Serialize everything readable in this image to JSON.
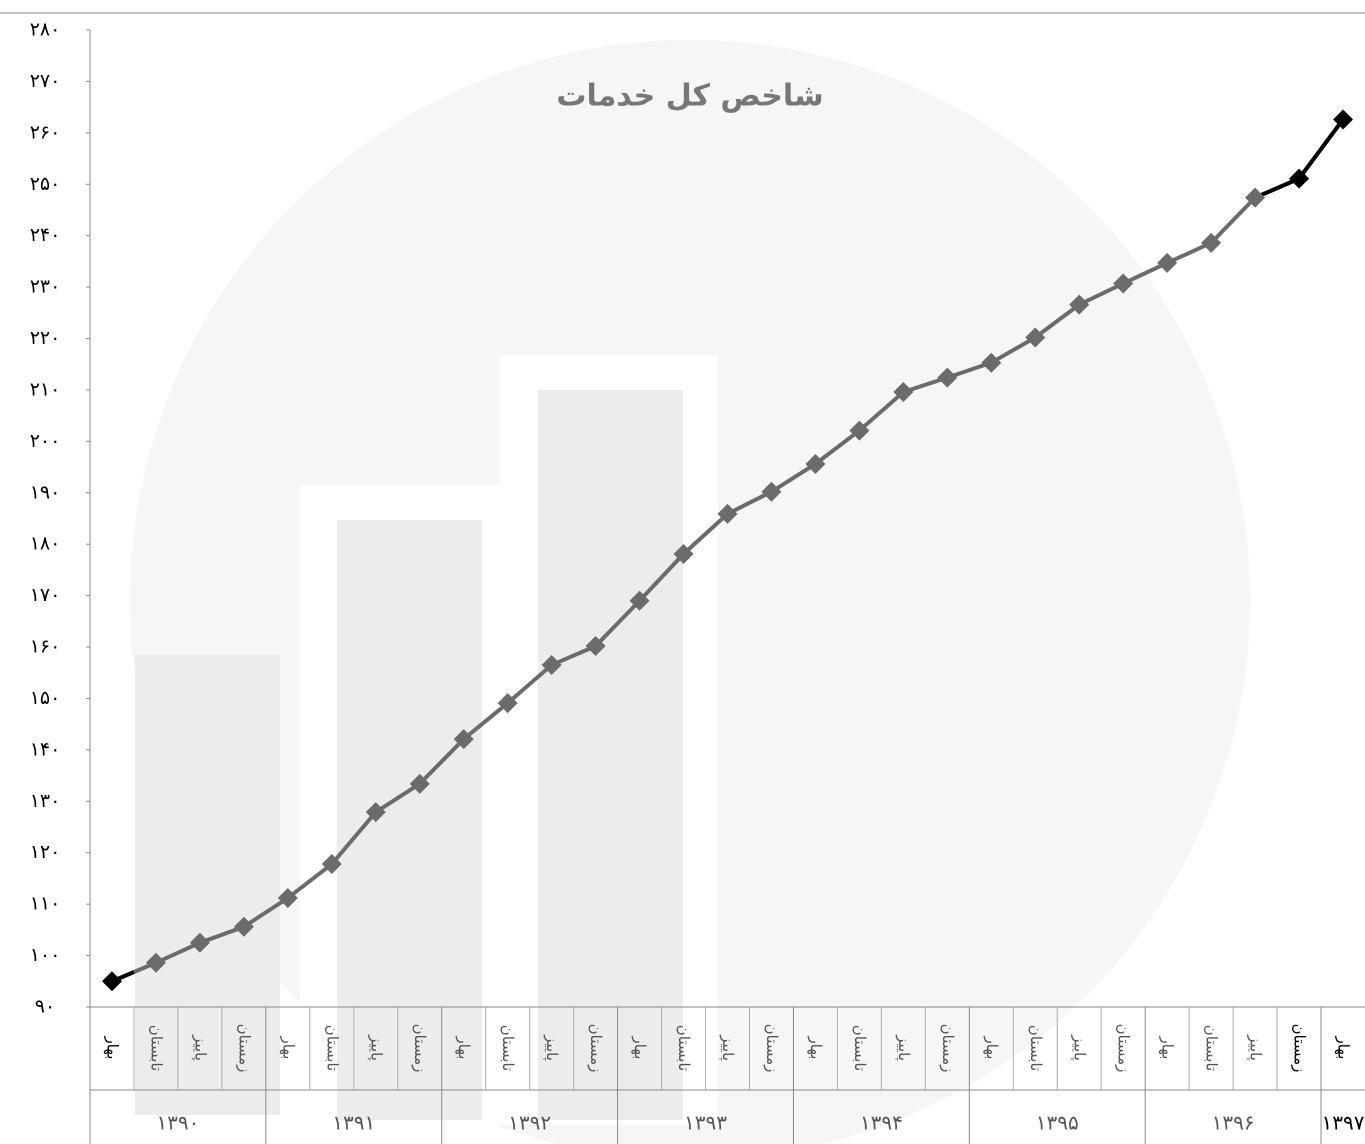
{
  "chart_data": {
    "type": "line",
    "title": "شاخص کل خدمات",
    "year_groups": [
      {
        "year": "۱۳۹۰",
        "seasons": [
          "بهار",
          "تابستان",
          "پاییز",
          "زمستان"
        ]
      },
      {
        "year": "۱۳۹۱",
        "seasons": [
          "بهار",
          "تابستان",
          "پاییز",
          "زمستان"
        ]
      },
      {
        "year": "۱۳۹۲",
        "seasons": [
          "بهار",
          "تابستان",
          "پاییز",
          "زمستان"
        ]
      },
      {
        "year": "۱۳۹۳",
        "seasons": [
          "بهار",
          "تابستان",
          "پاییز",
          "زمستان"
        ]
      },
      {
        "year": "۱۳۹۴",
        "seasons": [
          "بهار",
          "تابستان",
          "پاییز",
          "زمستان"
        ]
      },
      {
        "year": "۱۳۹۵",
        "seasons": [
          "بهار",
          "تابستان",
          "پاییز",
          "زمستان"
        ]
      },
      {
        "year": "۱۳۹۶",
        "seasons": [
          "بهار",
          "تابستان",
          "پاییز",
          "زمستان"
        ]
      },
      {
        "year": "۱۳۹۷",
        "seasons": [
          "بهار"
        ]
      }
    ],
    "values": [
      95,
      98.6,
      102.5,
      105.6,
      111.2,
      117.8,
      127.9,
      133.4,
      142.1,
      149.1,
      156.5,
      160.2,
      169,
      178.1,
      185.9,
      190.2,
      195.6,
      202.1,
      209.6,
      212.4,
      215.3,
      220.2,
      226.6,
      230.7,
      234.7,
      238.6,
      247.4,
      251.1,
      262.6
    ],
    "point_colors": [
      "#000000",
      "#6b6b6b",
      "#6b6b6b",
      "#6b6b6b",
      "#6b6b6b",
      "#6b6b6b",
      "#6b6b6b",
      "#6b6b6b",
      "#6b6b6b",
      "#6b6b6b",
      "#6b6b6b",
      "#6b6b6b",
      "#6b6b6b",
      "#6b6b6b",
      "#6b6b6b",
      "#6b6b6b",
      "#6b6b6b",
      "#6b6b6b",
      "#6b6b6b",
      "#6b6b6b",
      "#6b6b6b",
      "#6b6b6b",
      "#6b6b6b",
      "#6b6b6b",
      "#6b6b6b",
      "#6b6b6b",
      "#6b6b6b",
      "#000000",
      "#000000"
    ],
    "color": "#6b6b6b",
    "ylim": [
      90,
      280
    ],
    "yticks": [
      {
        "value": 90,
        "label": "۹۰"
      },
      {
        "value": 100,
        "label": "۱۰۰"
      },
      {
        "value": 110,
        "label": "۱۱۰"
      },
      {
        "value": 120,
        "label": "۱۲۰"
      },
      {
        "value": 130,
        "label": "۱۳۰"
      },
      {
        "value": 140,
        "label": "۱۴۰"
      },
      {
        "value": 150,
        "label": "۱۵۰"
      },
      {
        "value": 160,
        "label": "۱۶۰"
      },
      {
        "value": 170,
        "label": "۱۷۰"
      },
      {
        "value": 180,
        "label": "۱۸۰"
      },
      {
        "value": 190,
        "label": "۱۹۰"
      },
      {
        "value": 200,
        "label": "۲۰۰"
      },
      {
        "value": 210,
        "label": "۲۱۰"
      },
      {
        "value": 220,
        "label": "۲۲۰"
      },
      {
        "value": 230,
        "label": "۲۳۰"
      },
      {
        "value": 240,
        "label": "۲۴۰"
      },
      {
        "value": 250,
        "label": "۲۵۰"
      },
      {
        "value": 260,
        "label": "۲۶۰"
      },
      {
        "value": 270,
        "label": "۲۷۰"
      },
      {
        "value": 280,
        "label": "۲۸۰"
      }
    ],
    "grid": false
  }
}
